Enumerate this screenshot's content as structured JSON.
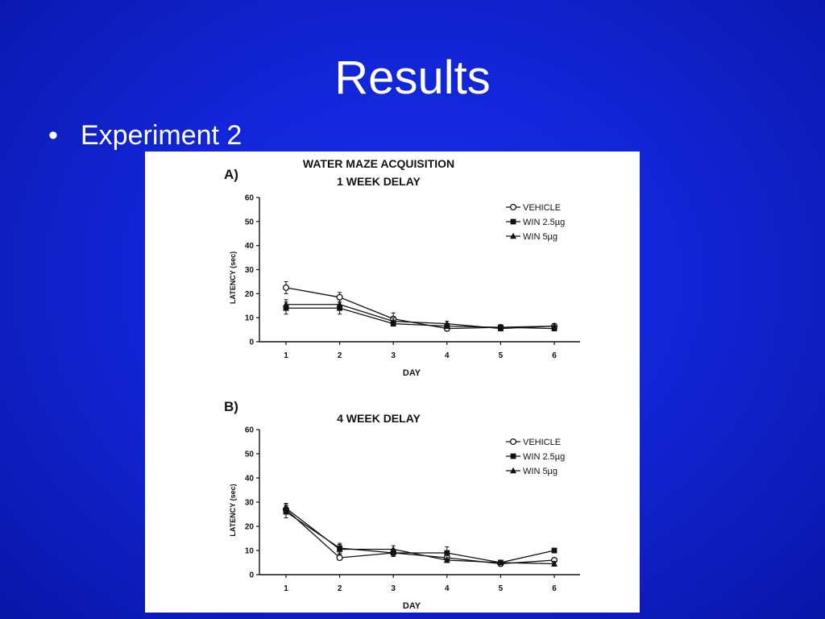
{
  "slide": {
    "title": "Results",
    "bullets": [
      {
        "glyph": "•",
        "text": "Experiment 2"
      }
    ]
  },
  "figure": {
    "main_title": "WATER MAZE ACQUISITION"
  },
  "colors": {
    "background": "#1226d8",
    "text": "#ffffff",
    "figure_bg": "#ffffff",
    "ink": "#111111"
  },
  "chart_data": [
    {
      "type": "line",
      "panel_label": "A)",
      "title": "1 WEEK DELAY",
      "xlabel": "DAY",
      "ylabel": "LATENCY (sec)",
      "x": [
        1,
        2,
        3,
        4,
        5,
        6
      ],
      "xlim": [
        0.5,
        6.5
      ],
      "ylim": [
        0,
        60
      ],
      "yticks": [
        0,
        10,
        20,
        30,
        40,
        50,
        60
      ],
      "legend_position": "top-right",
      "grid": false,
      "series": [
        {
          "name": "VEHICLE",
          "marker": "circle-open",
          "values": [
            22.5,
            18.5,
            9.5,
            5.5,
            6,
            6.5
          ],
          "errors": [
            2.5,
            2,
            2.5,
            1,
            1,
            1
          ]
        },
        {
          "name": "WIN 2.5µg",
          "marker": "square-filled",
          "values": [
            14,
            14,
            7.5,
            6.5,
            6,
            5.5
          ],
          "errors": [
            2.5,
            2.5,
            1,
            1,
            1,
            1
          ]
        },
        {
          "name": "WIN 5µg",
          "marker": "triangle-filled",
          "values": [
            15.5,
            15.5,
            8.5,
            7.5,
            5.5,
            6.5
          ],
          "errors": [
            2,
            2,
            1.5,
            1,
            1,
            1
          ]
        }
      ]
    },
    {
      "type": "line",
      "panel_label": "B)",
      "title": "4 WEEK DELAY",
      "xlabel": "DAY",
      "ylabel": "LATENCY (sec)",
      "x": [
        1,
        2,
        3,
        4,
        5,
        6
      ],
      "xlim": [
        0.5,
        6.5
      ],
      "ylim": [
        0,
        60
      ],
      "yticks": [
        0,
        10,
        20,
        30,
        40,
        50,
        60
      ],
      "legend_position": "top-right",
      "grid": false,
      "series": [
        {
          "name": "VEHICLE",
          "marker": "circle-open",
          "values": [
            27,
            7,
            9,
            7,
            4.5,
            6
          ],
          "errors": [
            2,
            1,
            1.5,
            1,
            1,
            1
          ]
        },
        {
          "name": "WIN 2.5µg",
          "marker": "square-filled",
          "values": [
            26,
            11,
            9,
            9,
            5,
            10
          ],
          "errors": [
            2.5,
            2,
            1.5,
            2.5,
            1,
            1
          ]
        },
        {
          "name": "WIN 5µg",
          "marker": "triangle-filled",
          "values": [
            27.5,
            10.5,
            10.5,
            6,
            5,
            4.5
          ],
          "errors": [
            2,
            2,
            1.5,
            1,
            1,
            1
          ]
        }
      ]
    }
  ]
}
